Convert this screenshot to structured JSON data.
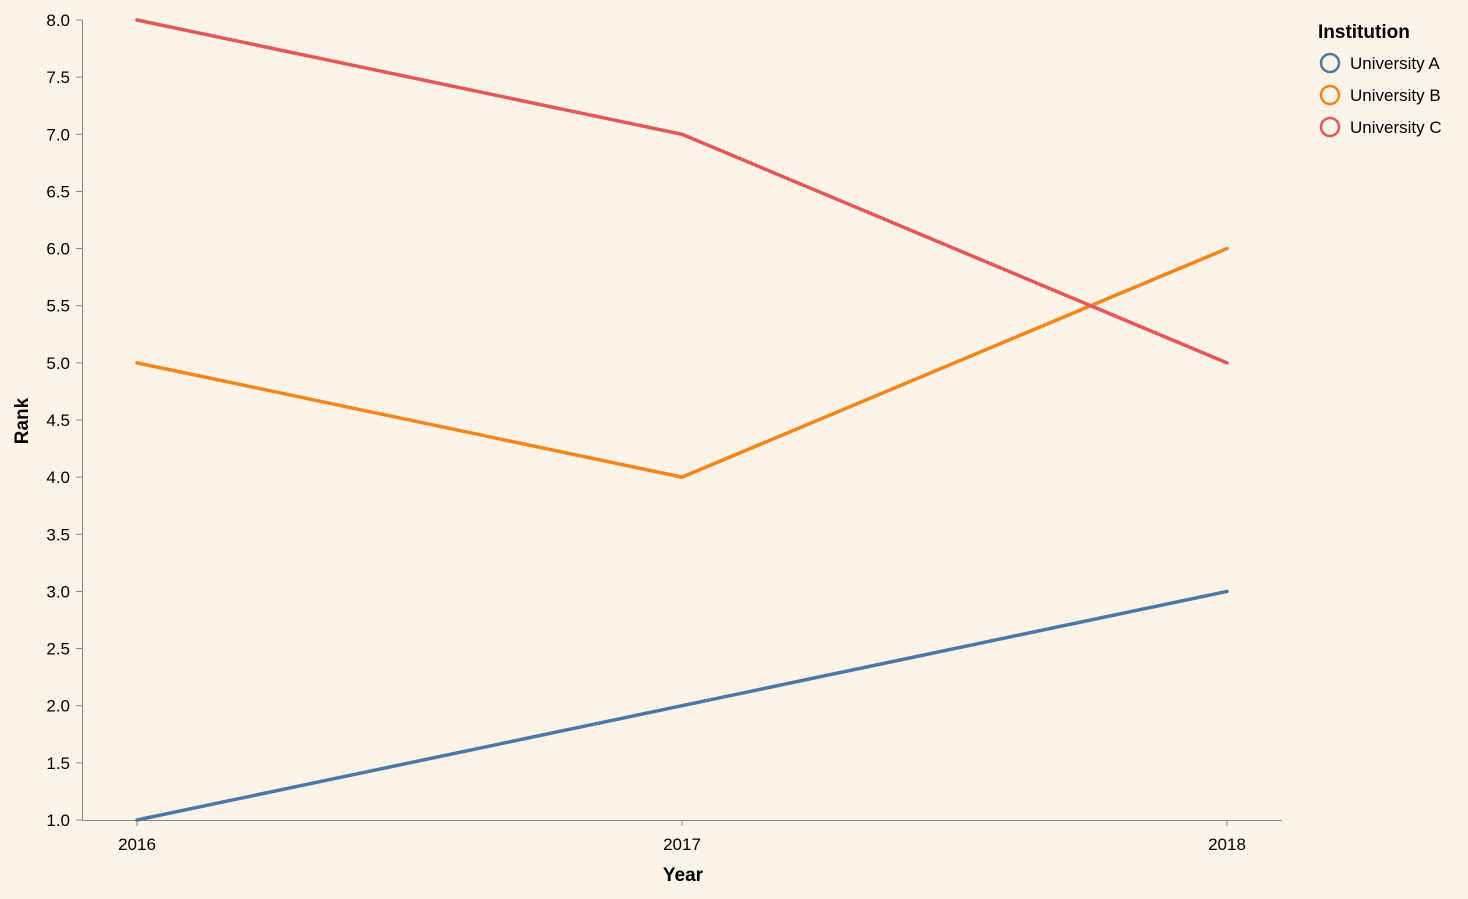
{
  "chart_data": {
    "type": "line",
    "x": [
      "2016",
      "2017",
      "2018"
    ],
    "xlabel": "Year",
    "ylabel": "Rank",
    "ylim": [
      1.0,
      8.0
    ],
    "yticks": [
      "1.0",
      "1.5",
      "2.0",
      "2.5",
      "3.0",
      "3.5",
      "4.0",
      "4.5",
      "5.0",
      "5.5",
      "6.0",
      "6.5",
      "7.0",
      "7.5",
      "8.0"
    ],
    "grid": false,
    "legend": {
      "title": "Institution",
      "placement": "top-right"
    },
    "series": [
      {
        "name": "University A",
        "color": "#4c78a8",
        "values": [
          1,
          2,
          3
        ]
      },
      {
        "name": "University B",
        "color": "#f58518",
        "values": [
          5,
          4,
          6
        ]
      },
      {
        "name": "University C",
        "color": "#e45756",
        "values": [
          8,
          7,
          5
        ]
      }
    ],
    "colors": {
      "background": "#fdf4e7",
      "axis": "#888888",
      "text": "#000000"
    }
  }
}
